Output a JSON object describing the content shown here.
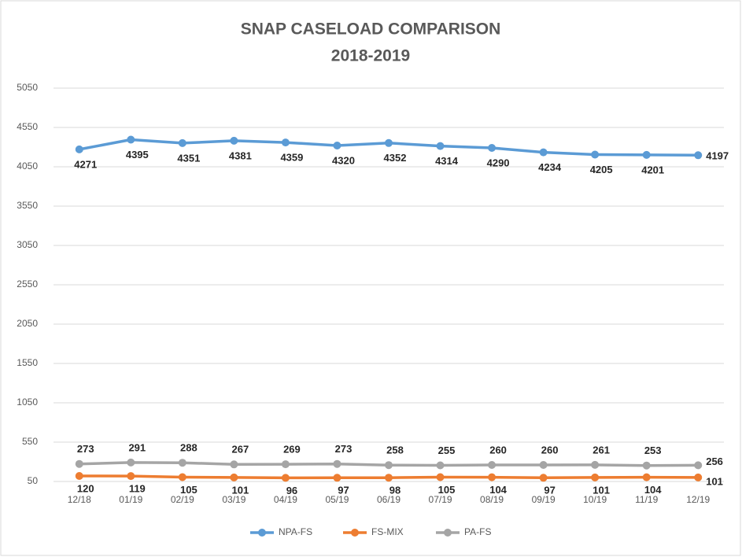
{
  "chart_data": {
    "type": "line",
    "title": "SNAP CASELOAD COMPARISON",
    "subtitle": "2018-2019",
    "categories": [
      "12/18",
      "01/19",
      "02/19",
      "03/19",
      "04/19",
      "05/19",
      "06/19",
      "07/19",
      "08/19",
      "09/19",
      "10/19",
      "11/19",
      "12/19"
    ],
    "series": [
      {
        "name": "NPA-FS",
        "color": "#5b9bd5",
        "values": [
          4271,
          4395,
          4351,
          4381,
          4359,
          4320,
          4352,
          4314,
          4290,
          4234,
          4205,
          4201,
          4197
        ]
      },
      {
        "name": "FS-MIX",
        "color": "#ed7d31",
        "values": [
          120,
          119,
          105,
          101,
          96,
          97,
          98,
          105,
          104,
          97,
          101,
          104,
          101
        ]
      },
      {
        "name": "PA-FS",
        "color": "#a5a5a5",
        "values": [
          273,
          291,
          288,
          267,
          269,
          273,
          258,
          255,
          260,
          260,
          261,
          253,
          256
        ]
      }
    ],
    "ylim": [
      50,
      5050
    ],
    "yticks": [
      50,
      550,
      1050,
      1550,
      2050,
      2550,
      3050,
      3550,
      4050,
      4550,
      5050
    ],
    "grid": true,
    "legend": "bottom"
  }
}
